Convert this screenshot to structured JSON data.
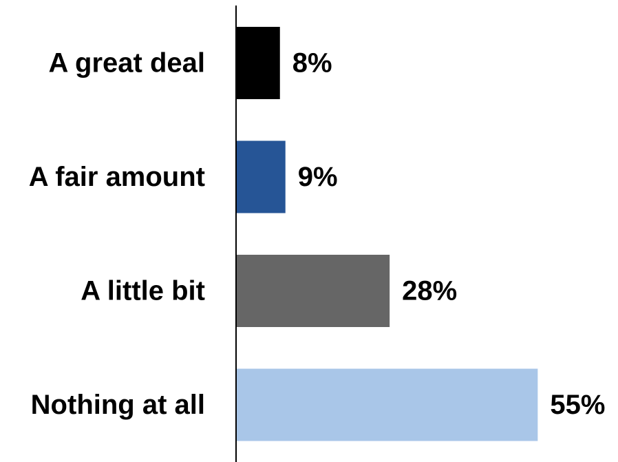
{
  "chart_data": {
    "type": "bar",
    "orientation": "horizontal",
    "categories": [
      "A great deal",
      "A fair amount",
      "A little bit",
      "Nothing at all"
    ],
    "values": [
      8,
      9,
      28,
      55
    ],
    "data_labels": [
      "8%",
      "9%",
      "28%",
      "55%"
    ],
    "colors": [
      "#000000",
      "#265596",
      "#666666",
      "#a9c6e8"
    ],
    "value_unit": "%",
    "xlim": [
      0,
      57
    ],
    "grid": false,
    "legend": "none"
  }
}
